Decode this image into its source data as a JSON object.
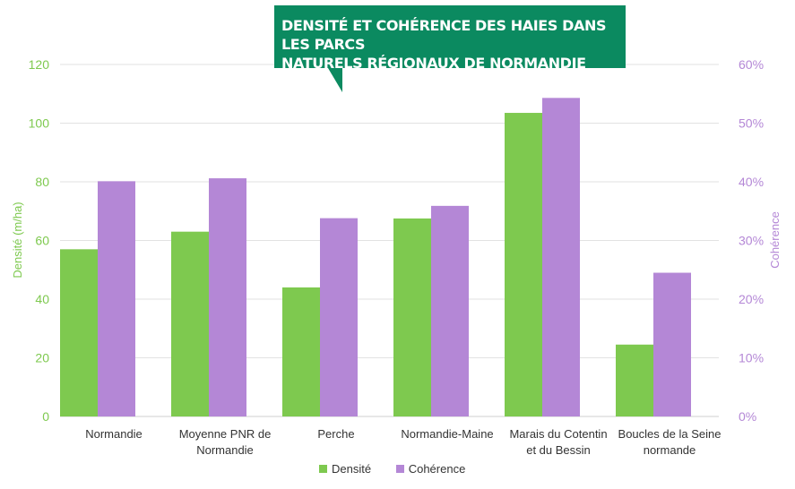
{
  "title_lines": [
    "DENSITÉ ET COHÉRENCE DES HAIES DANS LES PARCS",
    "NATURELS RÉGIONAUX DE NORMANDIE"
  ],
  "colors": {
    "title_bg": "#0b8a60",
    "density": "#7ec94f",
    "coherence": "#b487d6",
    "grid": "#e2e2e2"
  },
  "chart_data": {
    "type": "bar",
    "title": "DENSITÉ ET COHÉRENCE DES HAIES DANS LES PARCS NATURELS RÉGIONAUX DE NORMANDIE",
    "categories": [
      [
        "Normandie"
      ],
      [
        "Moyenne PNR de",
        "Normandie"
      ],
      [
        "Perche"
      ],
      [
        "Normandie-Maine"
      ],
      [
        "Marais du Cotentin",
        "et du Bessin"
      ],
      [
        "Boucles de la Seine",
        "normande"
      ]
    ],
    "series": [
      {
        "name": "Densité",
        "axis": "left",
        "values": [
          57,
          63,
          44,
          67.5,
          103.5,
          24.5
        ]
      },
      {
        "name": "Cohérence",
        "axis": "right",
        "values": [
          0.401,
          0.406,
          0.338,
          0.359,
          0.543,
          0.245
        ]
      }
    ],
    "ylabel_left": "Densité (m/ha)",
    "ylabel_right": "Cohérence",
    "ylim_left": [
      0,
      120
    ],
    "ylim_right": [
      0,
      0.6
    ],
    "yticks_left": [
      "0",
      "20",
      "40",
      "60",
      "80",
      "100",
      "120"
    ],
    "yticks_right": [
      "0%",
      "10%",
      "20%",
      "30%",
      "40%",
      "50%",
      "60%"
    ],
    "grid": true,
    "legend_position": "bottom"
  }
}
